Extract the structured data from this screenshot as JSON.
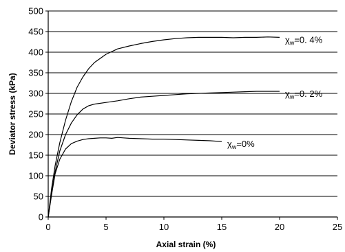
{
  "chart_data": {
    "type": "line",
    "title": "",
    "xlabel": "Axial strain (%)",
    "ylabel": "Deviator stress (kPa)",
    "xlim": [
      0,
      25
    ],
    "ylim": [
      0,
      500
    ],
    "xticks": [
      0,
      5,
      10,
      15,
      20,
      25
    ],
    "yticks": [
      0,
      50,
      100,
      150,
      200,
      250,
      300,
      350,
      400,
      450,
      500
    ],
    "grid": {
      "horizontal": true,
      "vertical": false
    },
    "legend": "none",
    "series": [
      {
        "label": {
          "symbol": "χ",
          "subscript": "w",
          "value": "=0. 4%"
        },
        "color": "#000000",
        "x": [
          0,
          0.3,
          0.6,
          1,
          1.5,
          2,
          2.5,
          3,
          3.5,
          4,
          5,
          6,
          7,
          8,
          9,
          10,
          11,
          12,
          13,
          14,
          15,
          16,
          17,
          18,
          19,
          20
        ],
        "y": [
          0,
          70,
          125,
          180,
          235,
          280,
          315,
          340,
          360,
          375,
          395,
          408,
          415,
          421,
          426,
          430,
          433,
          435,
          436,
          436,
          436,
          435,
          436,
          436,
          437,
          436
        ]
      },
      {
        "label": {
          "symbol": "χ",
          "subscript": "w",
          "value": "=0. 2%"
        },
        "color": "#000000",
        "x": [
          0,
          0.3,
          0.6,
          1,
          1.5,
          2,
          2.5,
          3,
          3.5,
          4,
          5,
          6,
          7,
          8,
          9,
          10,
          11,
          12,
          13,
          14,
          15,
          16,
          17,
          18,
          19,
          20
        ],
        "y": [
          0,
          60,
          110,
          160,
          200,
          228,
          248,
          262,
          270,
          274,
          278,
          282,
          287,
          291,
          293,
          295,
          297,
          299,
          300,
          301,
          302,
          303,
          304,
          305,
          305,
          305
        ]
      },
      {
        "label": {
          "symbol": "χ",
          "subscript": "w",
          "value": "=0%"
        },
        "color": "#000000",
        "x": [
          0,
          0.3,
          0.6,
          1,
          1.5,
          2,
          2.5,
          3,
          3.5,
          4,
          4.5,
          5,
          5.5,
          6,
          6.5,
          7,
          8,
          9,
          10,
          11,
          12,
          13,
          14,
          15
        ],
        "y": [
          0,
          55,
          105,
          140,
          165,
          178,
          184,
          188,
          190,
          191,
          192,
          192,
          191,
          193,
          192,
          191,
          190,
          189,
          189,
          188,
          187,
          186,
          185,
          183
        ]
      }
    ]
  }
}
